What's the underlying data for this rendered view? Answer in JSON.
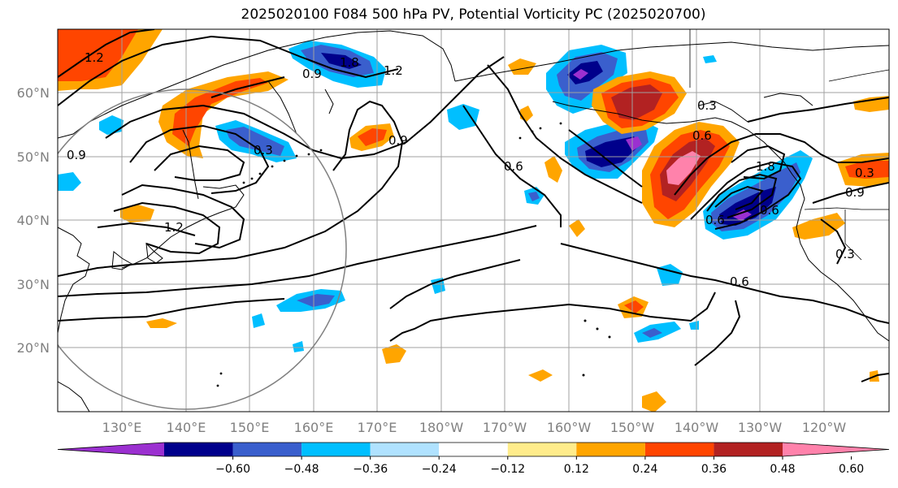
{
  "title": "2025020100 F084 500 hPa PV, Potential Vorticity PC (2025020700)",
  "lat_ticks": [
    "60°N",
    "50°N",
    "40°N",
    "30°N",
    "20°N"
  ],
  "lon_ticks": [
    "130°E",
    "140°E",
    "150°E",
    "160°E",
    "170°E",
    "180°W",
    "170°W",
    "160°W",
    "150°W",
    "140°W",
    "130°W",
    "120°W"
  ],
  "colorbar": {
    "ticks": [
      "−0.60",
      "−0.48",
      "−0.36",
      "−0.24",
      "−0.12",
      "0.12",
      "0.24",
      "0.36",
      "0.48",
      "0.60"
    ],
    "colors": [
      "#9b30d0",
      "#00008b",
      "#3a5fcd",
      "#00bfff",
      "#b0e2ff",
      "#ffffff",
      "#ffec8b",
      "#ffa500",
      "#ff4500",
      "#b22222",
      "#ff82ab"
    ]
  },
  "contour_labels": [
    "1.2",
    "1.8",
    "1.2",
    "0.9",
    "0.9",
    "0.9",
    "0.6",
    "0.3",
    "1.2",
    "0.6",
    "0.3",
    "0.6",
    "1.8",
    "0.6",
    "0.3",
    "0.6",
    "0.9",
    "0.3"
  ]
}
